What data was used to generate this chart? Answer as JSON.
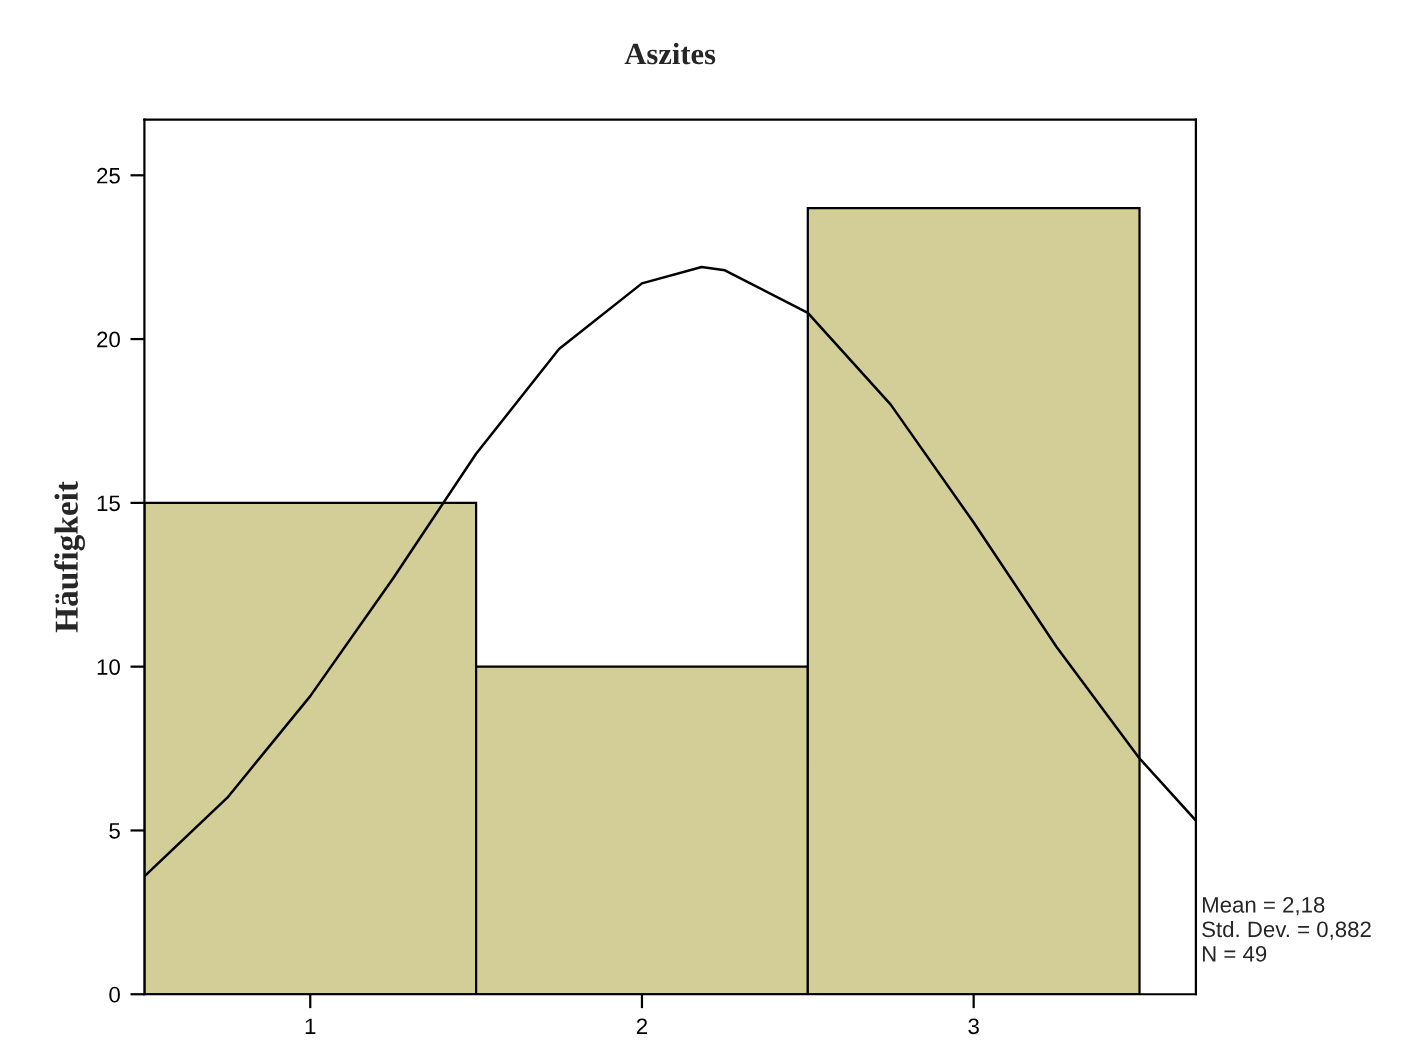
{
  "chart_data": {
    "type": "histogram",
    "title": "Aszites",
    "ylabel": "Häufigkeit",
    "bins": [
      0.5,
      1.5,
      2.5,
      3.5
    ],
    "values": [
      15,
      10,
      24
    ],
    "color": "#d3ce98",
    "series": [
      {
        "type": "line",
        "color": "#000000",
        "x": [
          0.5,
          0.75,
          1.0,
          1.25,
          1.5,
          1.75,
          2.0,
          2.18,
          2.25,
          2.5,
          2.75,
          3.0,
          3.25,
          3.5,
          3.67
        ],
        "values": [
          3.6,
          6.0,
          9.1,
          12.7,
          16.5,
          19.7,
          21.7,
          22.2,
          22.1,
          20.8,
          18.0,
          14.4,
          10.6,
          7.2,
          5.3
        ]
      }
    ],
    "xlim": [
      0.5,
      3.67
    ],
    "ylim": [
      0,
      26.7
    ],
    "xticks": [
      1,
      2,
      3
    ],
    "yticks": [
      0,
      5,
      10,
      15,
      20,
      25
    ],
    "grid": false,
    "legend": false,
    "annotations": [
      "Mean = 2,18",
      "Std. Dev. = 0,882",
      "N = 49"
    ]
  }
}
